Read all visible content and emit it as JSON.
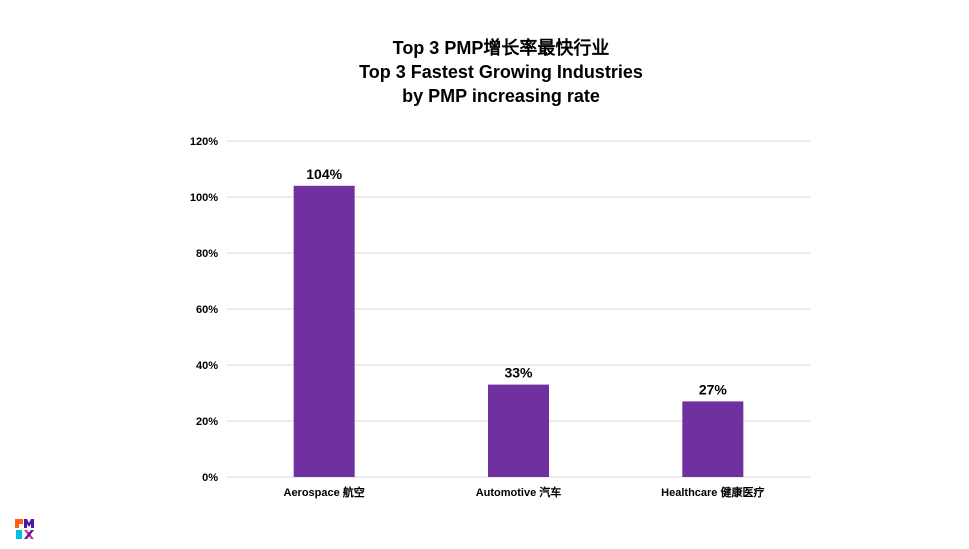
{
  "colors": {
    "bar": "#7030a0",
    "gridline": "#d9d9d9",
    "logo_orange": "#ff610f",
    "logo_purple": "#4f17a8",
    "logo_blue": "#05bfe0",
    "logo_pink": "#d82e8a"
  },
  "logo": {
    "icon": "pmi-logo-icon"
  },
  "chart_data": {
    "type": "bar",
    "title_lines": [
      "Top 3 PMP增长率最快行业",
      "Top 3 Fastest Growing Industries",
      "by PMP increasing rate"
    ],
    "categories": [
      "Aerospace 航空",
      "Automotive 汽车",
      "Healthcare 健康医疗"
    ],
    "values": [
      104,
      33,
      27
    ],
    "data_labels": [
      "104%",
      "33%",
      "27%"
    ],
    "ylim": [
      0,
      120
    ],
    "yticks": [
      0,
      20,
      40,
      60,
      80,
      100,
      120
    ],
    "ytick_labels": [
      "0%",
      "20%",
      "40%",
      "60%",
      "80%",
      "100%",
      "120%"
    ],
    "xlabel": "",
    "ylabel": "",
    "grid": true,
    "legend": "none"
  }
}
